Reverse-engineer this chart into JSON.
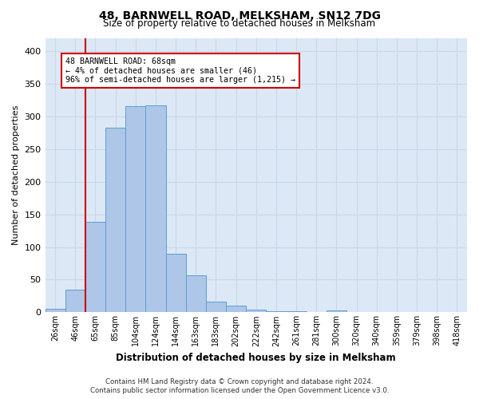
{
  "title": "48, BARNWELL ROAD, MELKSHAM, SN12 7DG",
  "subtitle": "Size of property relative to detached houses in Melksham",
  "xlabel": "Distribution of detached houses by size in Melksham",
  "ylabel": "Number of detached properties",
  "bin_labels": [
    "26sqm",
    "46sqm",
    "65sqm",
    "85sqm",
    "104sqm",
    "124sqm",
    "144sqm",
    "163sqm",
    "183sqm",
    "202sqm",
    "222sqm",
    "242sqm",
    "261sqm",
    "281sqm",
    "300sqm",
    "320sqm",
    "340sqm",
    "359sqm",
    "379sqm",
    "398sqm",
    "418sqm"
  ],
  "bar_heights": [
    5,
    35,
    138,
    282,
    315,
    317,
    90,
    57,
    16,
    10,
    4,
    2,
    2,
    0,
    3,
    0,
    1,
    0,
    0,
    0,
    1
  ],
  "bar_color": "#aec6e8",
  "bar_edge_color": "#5a9fd4",
  "annotation_line1": "48 BARNWELL ROAD: 68sqm",
  "annotation_line2": "← 4% of detached houses are smaller (46)",
  "annotation_line3": "96% of semi-detached houses are larger (1,215) →",
  "annotation_box_facecolor": "#ffffff",
  "annotation_box_edgecolor": "#cc0000",
  "vline_color": "#cc0000",
  "ylim": [
    0,
    420
  ],
  "yticks": [
    0,
    50,
    100,
    150,
    200,
    250,
    300,
    350,
    400
  ],
  "grid_color": "#c8d8e8",
  "background_color": "#dce8f5",
  "footer_line1": "Contains HM Land Registry data © Crown copyright and database right 2024.",
  "footer_line2": "Contains public sector information licensed under the Open Government Licence v3.0."
}
